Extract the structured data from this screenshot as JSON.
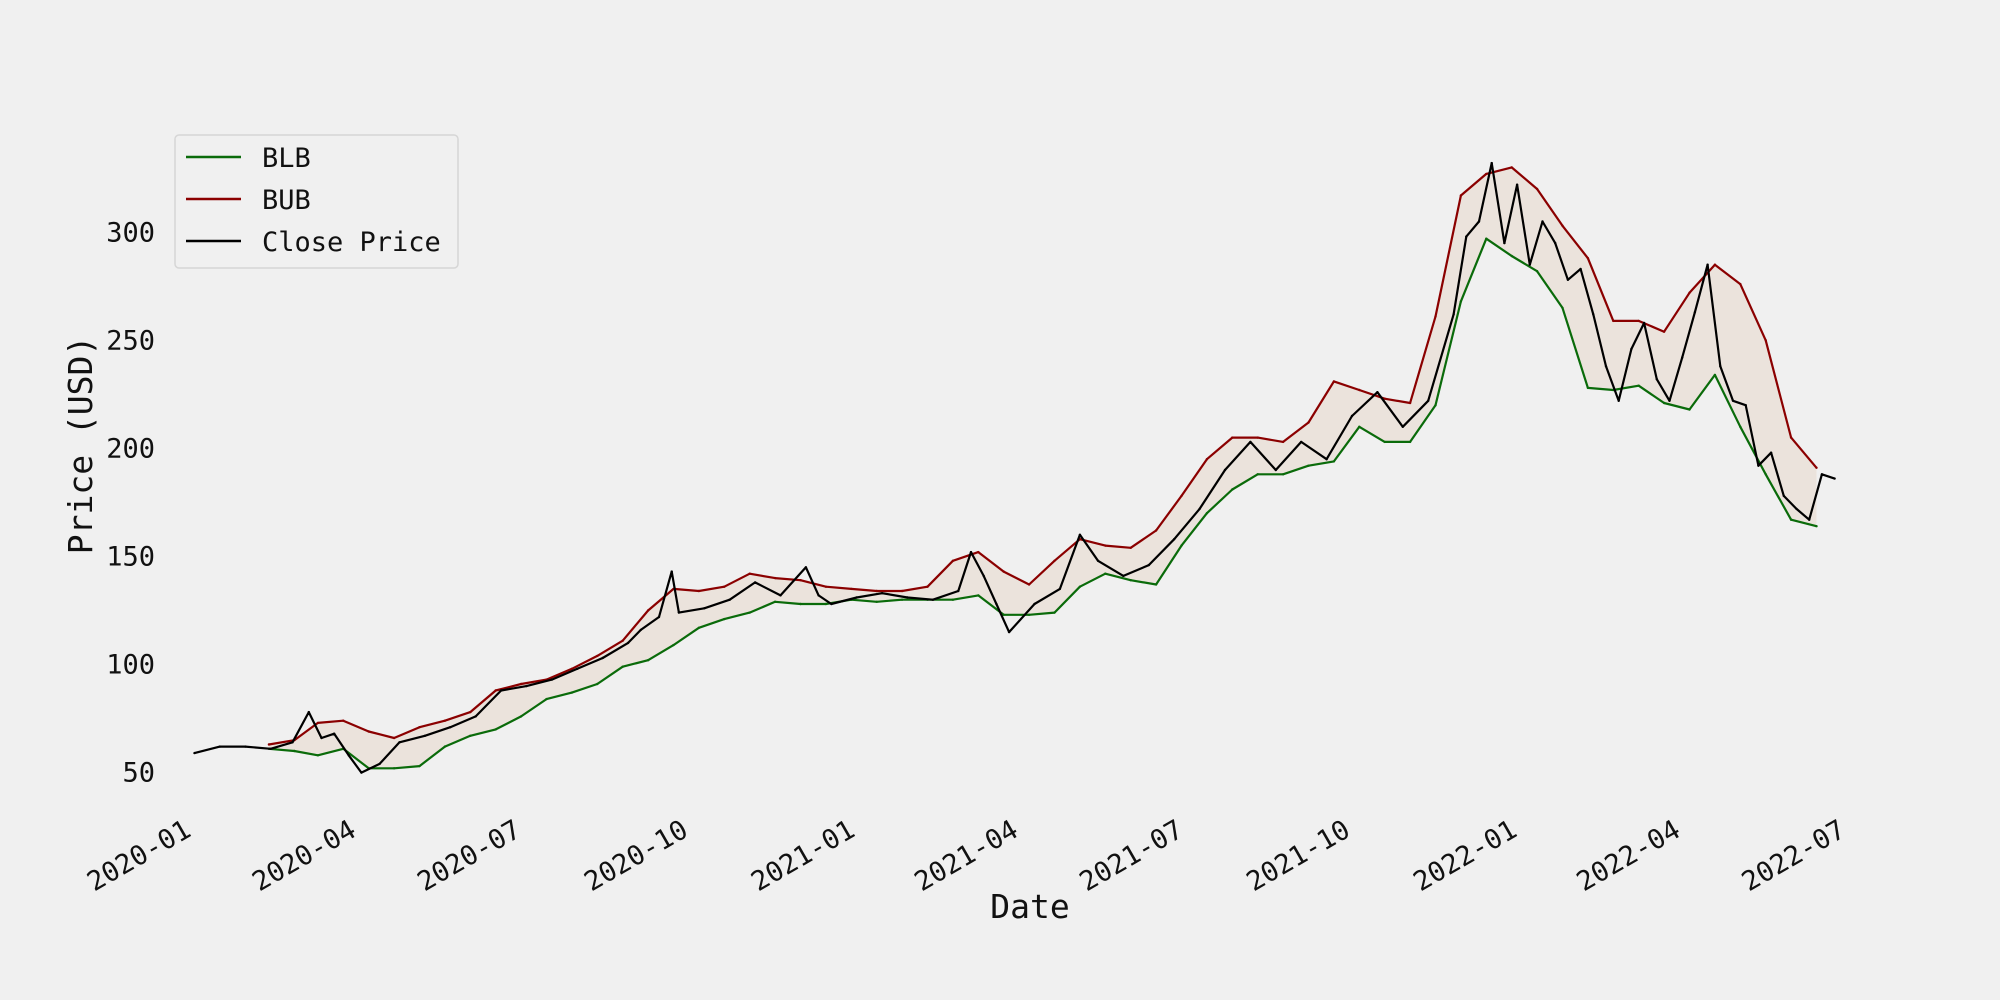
{
  "chart_data": {
    "type": "line",
    "title": "",
    "xlabel": "Date",
    "ylabel": "Price (USD)",
    "ylim": [
      35,
      345
    ],
    "xlim": [
      "2019-12-25",
      "2022-07-08"
    ],
    "grid": false,
    "legend_placement": "top-left",
    "x_ticks": [
      "2020-01",
      "2020-04",
      "2020-07",
      "2020-10",
      "2021-01",
      "2021-04",
      "2021-07",
      "2021-10",
      "2022-01",
      "2022-04",
      "2022-07"
    ],
    "y_ticks": [
      50,
      100,
      150,
      200,
      250,
      300
    ],
    "band_fill_color": "#ebe3dc",
    "series": [
      {
        "name": "BLB",
        "color": "#0a6b0a",
        "points": [
          [
            "2020-02-12",
            61
          ],
          [
            "2020-02-26",
            60
          ],
          [
            "2020-03-10",
            58
          ],
          [
            "2020-03-24",
            61
          ],
          [
            "2020-04-07",
            52
          ],
          [
            "2020-04-21",
            52
          ],
          [
            "2020-05-05",
            53
          ],
          [
            "2020-05-19",
            62
          ],
          [
            "2020-06-02",
            67
          ],
          [
            "2020-06-16",
            70
          ],
          [
            "2020-06-30",
            76
          ],
          [
            "2020-07-14",
            84
          ],
          [
            "2020-07-28",
            87
          ],
          [
            "2020-08-11",
            91
          ],
          [
            "2020-08-25",
            99
          ],
          [
            "2020-09-08",
            102
          ],
          [
            "2020-09-22",
            109
          ],
          [
            "2020-10-06",
            117
          ],
          [
            "2020-10-20",
            121
          ],
          [
            "2020-11-03",
            124
          ],
          [
            "2020-11-17",
            129
          ],
          [
            "2020-12-01",
            128
          ],
          [
            "2020-12-15",
            128
          ],
          [
            "2020-12-29",
            130
          ],
          [
            "2021-01-12",
            129
          ],
          [
            "2021-01-26",
            130
          ],
          [
            "2021-02-09",
            130
          ],
          [
            "2021-02-23",
            130
          ],
          [
            "2021-03-09",
            132
          ],
          [
            "2021-03-23",
            123
          ],
          [
            "2021-04-06",
            123
          ],
          [
            "2021-04-20",
            124
          ],
          [
            "2021-05-04",
            136
          ],
          [
            "2021-05-18",
            142
          ],
          [
            "2021-06-01",
            139
          ],
          [
            "2021-06-15",
            137
          ],
          [
            "2021-06-29",
            155
          ],
          [
            "2021-07-13",
            170
          ],
          [
            "2021-07-27",
            181
          ],
          [
            "2021-08-10",
            188
          ],
          [
            "2021-08-24",
            188
          ],
          [
            "2021-09-07",
            192
          ],
          [
            "2021-09-21",
            194
          ],
          [
            "2021-10-05",
            210
          ],
          [
            "2021-10-19",
            203
          ],
          [
            "2021-11-02",
            203
          ],
          [
            "2021-11-16",
            220
          ],
          [
            "2021-11-30",
            268
          ],
          [
            "2021-12-14",
            297
          ],
          [
            "2021-12-28",
            289
          ],
          [
            "2022-01-11",
            282
          ],
          [
            "2022-01-25",
            265
          ],
          [
            "2022-02-08",
            228
          ],
          [
            "2022-02-22",
            227
          ],
          [
            "2022-03-08",
            229
          ],
          [
            "2022-03-22",
            221
          ],
          [
            "2022-04-05",
            218
          ],
          [
            "2022-04-19",
            234
          ],
          [
            "2022-05-03",
            210
          ],
          [
            "2022-05-17",
            188
          ],
          [
            "2022-05-31",
            167
          ],
          [
            "2022-06-14",
            164
          ]
        ]
      },
      {
        "name": "BUB",
        "color": "#8b0000",
        "points": [
          [
            "2020-02-12",
            63
          ],
          [
            "2020-02-26",
            65
          ],
          [
            "2020-03-10",
            73
          ],
          [
            "2020-03-24",
            74
          ],
          [
            "2020-04-07",
            69
          ],
          [
            "2020-04-21",
            66
          ],
          [
            "2020-05-05",
            71
          ],
          [
            "2020-05-19",
            74
          ],
          [
            "2020-06-02",
            78
          ],
          [
            "2020-06-16",
            88
          ],
          [
            "2020-06-30",
            91
          ],
          [
            "2020-07-14",
            93
          ],
          [
            "2020-07-28",
            98
          ],
          [
            "2020-08-11",
            104
          ],
          [
            "2020-08-25",
            111
          ],
          [
            "2020-09-08",
            125
          ],
          [
            "2020-09-22",
            135
          ],
          [
            "2020-10-06",
            134
          ],
          [
            "2020-10-20",
            136
          ],
          [
            "2020-11-03",
            142
          ],
          [
            "2020-11-17",
            140
          ],
          [
            "2020-12-01",
            139
          ],
          [
            "2020-12-15",
            136
          ],
          [
            "2020-12-29",
            135
          ],
          [
            "2021-01-12",
            134
          ],
          [
            "2021-01-26",
            134
          ],
          [
            "2021-02-09",
            136
          ],
          [
            "2021-02-23",
            148
          ],
          [
            "2021-03-09",
            152
          ],
          [
            "2021-03-23",
            143
          ],
          [
            "2021-04-06",
            137
          ],
          [
            "2021-04-20",
            148
          ],
          [
            "2021-05-04",
            158
          ],
          [
            "2021-05-18",
            155
          ],
          [
            "2021-06-01",
            154
          ],
          [
            "2021-06-15",
            162
          ],
          [
            "2021-06-29",
            178
          ],
          [
            "2021-07-13",
            195
          ],
          [
            "2021-07-27",
            205
          ],
          [
            "2021-08-10",
            205
          ],
          [
            "2021-08-24",
            203
          ],
          [
            "2021-09-07",
            212
          ],
          [
            "2021-09-21",
            231
          ],
          [
            "2021-10-05",
            227
          ],
          [
            "2021-10-19",
            223
          ],
          [
            "2021-11-02",
            221
          ],
          [
            "2021-11-16",
            261
          ],
          [
            "2021-11-30",
            317
          ],
          [
            "2021-12-14",
            327
          ],
          [
            "2021-12-28",
            330
          ],
          [
            "2022-01-11",
            320
          ],
          [
            "2022-01-25",
            303
          ],
          [
            "2022-02-08",
            288
          ],
          [
            "2022-02-22",
            259
          ],
          [
            "2022-03-08",
            259
          ],
          [
            "2022-03-22",
            254
          ],
          [
            "2022-04-05",
            272
          ],
          [
            "2022-04-19",
            285
          ],
          [
            "2022-05-03",
            276
          ],
          [
            "2022-05-17",
            250
          ],
          [
            "2022-05-31",
            205
          ],
          [
            "2022-06-14",
            191
          ]
        ]
      },
      {
        "name": "Close Price",
        "color": "#000000",
        "points": [
          [
            "2020-01-02",
            59
          ],
          [
            "2020-01-16",
            62
          ],
          [
            "2020-01-30",
            62
          ],
          [
            "2020-02-13",
            61
          ],
          [
            "2020-02-25",
            64
          ],
          [
            "2020-03-05",
            78
          ],
          [
            "2020-03-12",
            66
          ],
          [
            "2020-03-19",
            68
          ],
          [
            "2020-03-27",
            58
          ],
          [
            "2020-04-03",
            50
          ],
          [
            "2020-04-13",
            54
          ],
          [
            "2020-04-24",
            64
          ],
          [
            "2020-05-08",
            67
          ],
          [
            "2020-05-22",
            71
          ],
          [
            "2020-06-05",
            76
          ],
          [
            "2020-06-19",
            88
          ],
          [
            "2020-07-03",
            90
          ],
          [
            "2020-07-17",
            93
          ],
          [
            "2020-07-31",
            98
          ],
          [
            "2020-08-14",
            103
          ],
          [
            "2020-08-28",
            110
          ],
          [
            "2020-09-04",
            116
          ],
          [
            "2020-09-14",
            122
          ],
          [
            "2020-09-21",
            143
          ],
          [
            "2020-09-25",
            124
          ],
          [
            "2020-10-09",
            126
          ],
          [
            "2020-10-23",
            130
          ],
          [
            "2020-11-06",
            138
          ],
          [
            "2020-11-20",
            132
          ],
          [
            "2020-12-04",
            145
          ],
          [
            "2020-12-11",
            132
          ],
          [
            "2020-12-18",
            128
          ],
          [
            "2021-01-01",
            131
          ],
          [
            "2021-01-15",
            133
          ],
          [
            "2021-01-29",
            131
          ],
          [
            "2021-02-12",
            130
          ],
          [
            "2021-02-26",
            134
          ],
          [
            "2021-03-05",
            152
          ],
          [
            "2021-03-12",
            141
          ],
          [
            "2021-03-19",
            128
          ],
          [
            "2021-03-26",
            115
          ],
          [
            "2021-04-09",
            128
          ],
          [
            "2021-04-23",
            135
          ],
          [
            "2021-05-04",
            160
          ],
          [
            "2021-05-14",
            148
          ],
          [
            "2021-05-28",
            141
          ],
          [
            "2021-06-11",
            146
          ],
          [
            "2021-06-25",
            158
          ],
          [
            "2021-07-09",
            172
          ],
          [
            "2021-07-23",
            190
          ],
          [
            "2021-08-06",
            203
          ],
          [
            "2021-08-20",
            190
          ],
          [
            "2021-09-03",
            203
          ],
          [
            "2021-09-17",
            195
          ],
          [
            "2021-10-01",
            215
          ],
          [
            "2021-10-15",
            226
          ],
          [
            "2021-10-29",
            210
          ],
          [
            "2021-11-12",
            222
          ],
          [
            "2021-11-26",
            262
          ],
          [
            "2021-12-03",
            298
          ],
          [
            "2021-12-10",
            305
          ],
          [
            "2021-12-17",
            332
          ],
          [
            "2021-12-24",
            295
          ],
          [
            "2021-12-31",
            322
          ],
          [
            "2022-01-07",
            285
          ],
          [
            "2022-01-14",
            305
          ],
          [
            "2022-01-21",
            295
          ],
          [
            "2022-01-28",
            278
          ],
          [
            "2022-02-04",
            283
          ],
          [
            "2022-02-11",
            262
          ],
          [
            "2022-02-18",
            238
          ],
          [
            "2022-02-25",
            222
          ],
          [
            "2022-03-04",
            246
          ],
          [
            "2022-03-11",
            258
          ],
          [
            "2022-03-18",
            232
          ],
          [
            "2022-03-25",
            222
          ],
          [
            "2022-04-01",
            242
          ],
          [
            "2022-04-08",
            263
          ],
          [
            "2022-04-15",
            285
          ],
          [
            "2022-04-22",
            238
          ],
          [
            "2022-04-29",
            222
          ],
          [
            "2022-05-06",
            220
          ],
          [
            "2022-05-13",
            192
          ],
          [
            "2022-05-20",
            198
          ],
          [
            "2022-05-27",
            178
          ],
          [
            "2022-06-03",
            172
          ],
          [
            "2022-06-10",
            167
          ],
          [
            "2022-06-17",
            188
          ],
          [
            "2022-06-24",
            186
          ]
        ]
      }
    ]
  }
}
